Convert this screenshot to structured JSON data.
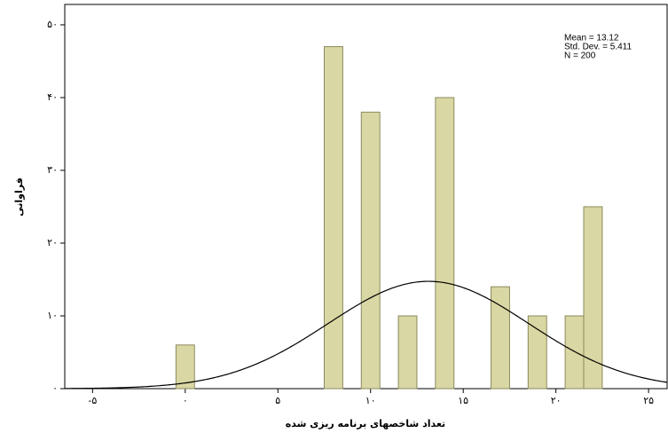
{
  "chart_data": {
    "type": "histogram",
    "x_label": "تعداد شاخصهای برنامه ریزی شده",
    "y_label": "فراوانی",
    "bins": [
      -0.5,
      0.5,
      1.5,
      2.5,
      3.5,
      4.5,
      5.5,
      6.5,
      7.5,
      8.5,
      9.5,
      10.5,
      11.5,
      12.5,
      13.5,
      14.5,
      15.5,
      16.5,
      17.5,
      18.5,
      19.5,
      20.5,
      21.5,
      22.5
    ],
    "values": [
      6,
      0,
      0,
      0,
      0,
      0,
      0,
      0,
      47,
      0,
      38,
      0,
      10,
      0,
      40,
      0,
      0,
      14,
      0,
      10,
      0,
      10,
      25
    ],
    "color": "#d9d7a3",
    "edge_color": "#8c8a5c",
    "curve_color": "#000000",
    "stats": [
      {
        "value": 13.12,
        "label": "Mean = 13.12"
      },
      {
        "value": 5.411,
        "label": "Std. Dev. = 5.411"
      },
      {
        "value": 200,
        "label": "N = 200"
      }
    ],
    "xlim": [
      -6.5,
      26
    ],
    "ylim": [
      0,
      52.8
    ],
    "xticks": [
      {
        "value": -5,
        "label": "-۵"
      },
      {
        "value": 0,
        "label": "۰"
      },
      {
        "value": 5,
        "label": "۵"
      },
      {
        "value": 10,
        "label": "۱۰"
      },
      {
        "value": 15,
        "label": "۱۵"
      },
      {
        "value": 20,
        "label": "۲۰"
      },
      {
        "value": 25,
        "label": "۲۵"
      }
    ],
    "yticks": [
      {
        "value": 0,
        "label": "۰"
      },
      {
        "value": 10,
        "label": "۱۰"
      },
      {
        "value": 20,
        "label": "۲۰"
      },
      {
        "value": 30,
        "label": "۳۰"
      },
      {
        "value": 40,
        "label": "۴۰"
      },
      {
        "value": 50,
        "label": "۵۰"
      }
    ],
    "grid": false
  }
}
